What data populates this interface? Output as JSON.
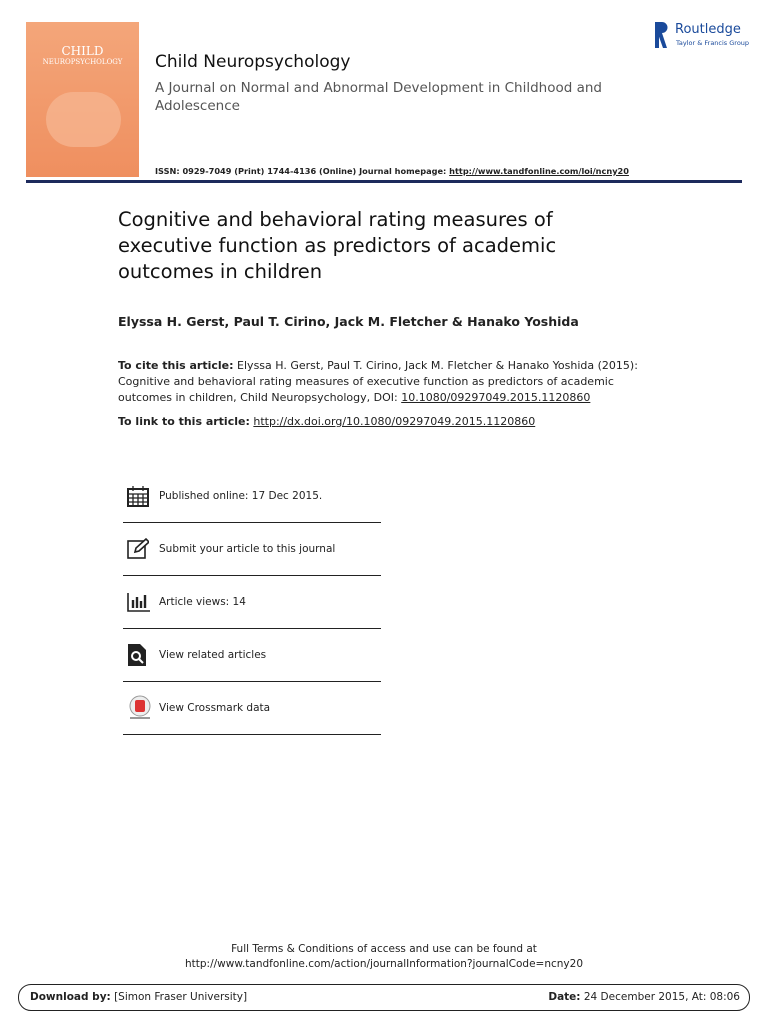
{
  "header": {
    "journal_title": "Child Neuropsychology",
    "subtitle": "A Journal on Normal and Abnormal Development in Childhood and Adolescence",
    "issn": "ISSN: 0929-7049 (Print) 1744-4136 (Online) Journal homepage:",
    "homepage_url": "http://www.tandfonline.com/loi/ncny20",
    "publisher": "Routledge",
    "publisher_sub": "Taylor & Francis Group",
    "cover_title_1": "CHILD",
    "cover_title_2": "NEUROPSYCHOLOGY"
  },
  "article": {
    "title": "Cognitive and behavioral rating measures of executive function as predictors of academic outcomes in children",
    "authors": "Elyssa H. Gerst, Paul T. Cirino, Jack M. Fletcher & Hanako Yoshida",
    "cite_label": "To cite this article:",
    "cite_text": "Elyssa H. Gerst, Paul T. Cirino, Jack M. Fletcher & Hanako Yoshida (2015): Cognitive and behavioral rating measures of executive function as predictors of academic outcomes in children, Child Neuropsychology, DOI:",
    "doi": "10.1080/09297049.2015.1120860",
    "link_label": "To link to this article:",
    "link_url": "http://dx.doi.org/10.1080/09297049.2015.1120860"
  },
  "actions": [
    "Published online: 17 Dec 2015.",
    "Submit your article to this journal",
    "Article views: 14",
    "View related articles",
    "View Crossmark data"
  ],
  "footer": {
    "terms_line1": "Full Terms & Conditions of access and use can be found at",
    "terms_line2": "http://www.tandfonline.com/action/journalInformation?journalCode=ncny20",
    "download_label": "Download by:",
    "download_value": "[Simon Fraser University]",
    "date_label": "Date:",
    "date_value": "24 December 2015, At: 08:06"
  }
}
